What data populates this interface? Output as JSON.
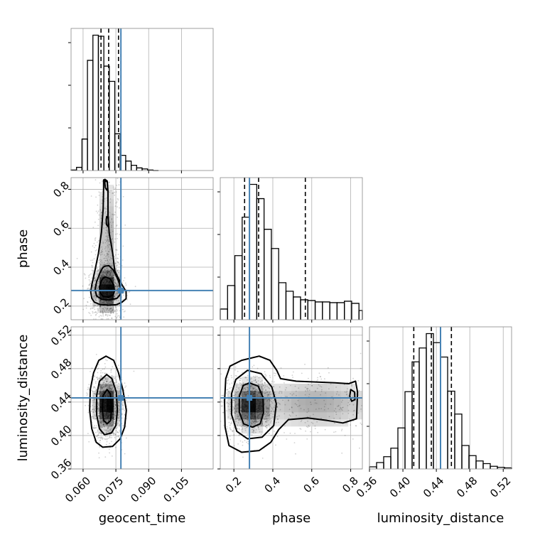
{
  "chart_data": {
    "type": "corner",
    "parameters": [
      "geocent_time",
      "phase",
      "luminosity_distance"
    ],
    "truth_color": "#4682b4",
    "truths": {
      "geocent_time": 0.0773,
      "phase": 0.28,
      "luminosity_distance": 0.445
    },
    "ranges": {
      "geocent_time": [
        0.0545,
        0.1195
      ],
      "phase": [
        0.13,
        0.86
      ],
      "luminosity_distance": [
        0.36,
        0.53
      ]
    },
    "ticks": {
      "geocent_time": {
        "values": [
          0.06,
          0.075,
          0.09,
          0.105
        ],
        "labels": [
          "0.060",
          "0.075",
          "0.090",
          "0.105"
        ]
      },
      "phase": {
        "values": [
          0.2,
          0.4,
          0.6,
          0.8
        ],
        "labels": [
          "0.2",
          "0.4",
          "0.6",
          "0.8"
        ]
      },
      "luminosity_distance": {
        "values": [
          0.36,
          0.4,
          0.44,
          0.48,
          0.52
        ],
        "labels": [
          "0.36",
          "0.40",
          "0.44",
          "0.48",
          "0.52"
        ]
      }
    },
    "quantiles": {
      "geocent_time": [
        0.0682,
        0.0717,
        0.0762
      ],
      "phase": [
        0.255,
        0.327,
        0.567
      ],
      "luminosity_distance": [
        0.413,
        0.434,
        0.458
      ]
    },
    "histograms": {
      "geocent_time": {
        "edges": [
          0.0545,
          0.057,
          0.0595,
          0.062,
          0.0645,
          0.067,
          0.0695,
          0.072,
          0.0745,
          0.077,
          0.0795,
          0.082,
          0.0845,
          0.087,
          0.0895,
          0.092,
          0.0945
        ],
        "counts": [
          1,
          6,
          60,
          210,
          258,
          256,
          199,
          170,
          70,
          29,
          18,
          10,
          5,
          3,
          1,
          0
        ]
      },
      "phase": {
        "edges": [
          0.13,
          0.1675,
          0.205,
          0.2425,
          0.28,
          0.3175,
          0.355,
          0.3925,
          0.43,
          0.4675,
          0.505,
          0.5425,
          0.58,
          0.6175,
          0.655,
          0.6925,
          0.73,
          0.7675,
          0.805,
          0.8425,
          0.86
        ],
        "counts": [
          15,
          48,
          90,
          144,
          190,
          170,
          127,
          100,
          52,
          40,
          32,
          28,
          27,
          25,
          25,
          24,
          24,
          26,
          23,
          13
        ]
      },
      "luminosity_distance": {
        "edges": [
          0.36,
          0.3685,
          0.377,
          0.3855,
          0.394,
          0.4025,
          0.411,
          0.4195,
          0.428,
          0.4365,
          0.445,
          0.4535,
          0.462,
          0.4705,
          0.479,
          0.4875,
          0.496,
          0.5045,
          0.513,
          0.5215,
          0.53
        ],
        "counts": [
          4,
          12,
          23,
          39,
          77,
          145,
          201,
          227,
          254,
          237,
          210,
          146,
          103,
          44,
          25,
          15,
          10,
          5,
          3,
          2
        ]
      }
    },
    "pairs": [
      {
        "x": "geocent_time",
        "y": "phase",
        "blobs": [
          {
            "mx": 0.0708,
            "my": 0.285,
            "sx": 0.0028,
            "sy": 0.058,
            "w": 1.0
          },
          {
            "mx": 0.0712,
            "my": 0.55,
            "sx": 0.0024,
            "sy": 0.17,
            "w": 0.28
          }
        ],
        "contours": [
          [
            [
              0.0694,
              0.848
            ],
            [
              0.07,
              0.851
            ],
            [
              0.071,
              0.843
            ],
            [
              0.0714,
              0.79
            ],
            [
              0.0714,
              0.728
            ],
            [
              0.0714,
              0.665
            ],
            [
              0.072,
              0.572
            ],
            [
              0.073,
              0.51
            ],
            [
              0.0738,
              0.45
            ],
            [
              0.0745,
              0.382
            ],
            [
              0.076,
              0.345
            ],
            [
              0.0783,
              0.3
            ],
            [
              0.0797,
              0.275
            ],
            [
              0.0797,
              0.238
            ],
            [
              0.0778,
              0.22
            ],
            [
              0.0752,
              0.207
            ],
            [
              0.0718,
              0.205
            ],
            [
              0.0678,
              0.208
            ],
            [
              0.0652,
              0.22
            ],
            [
              0.064,
              0.24
            ],
            [
              0.0635,
              0.272
            ],
            [
              0.064,
              0.31
            ],
            [
              0.0652,
              0.37
            ],
            [
              0.067,
              0.47
            ],
            [
              0.0684,
              0.58
            ],
            [
              0.0692,
              0.7
            ],
            [
              0.0694,
              0.8
            ]
          ],
          [
            [
              0.07,
              0.405
            ],
            [
              0.0718,
              0.408
            ],
            [
              0.0738,
              0.385
            ],
            [
              0.0752,
              0.355
            ],
            [
              0.0765,
              0.32
            ],
            [
              0.0772,
              0.29
            ],
            [
              0.077,
              0.26
            ],
            [
              0.0755,
              0.24
            ],
            [
              0.072,
              0.232
            ],
            [
              0.0685,
              0.235
            ],
            [
              0.0662,
              0.252
            ],
            [
              0.0655,
              0.285
            ],
            [
              0.0662,
              0.325
            ],
            [
              0.0677,
              0.37
            ],
            [
              0.069,
              0.398
            ]
          ],
          [
            [
              0.0702,
              0.35
            ],
            [
              0.0724,
              0.34
            ],
            [
              0.074,
              0.31
            ],
            [
              0.0744,
              0.278
            ],
            [
              0.0737,
              0.256
            ],
            [
              0.0716,
              0.247
            ],
            [
              0.0692,
              0.25
            ],
            [
              0.0677,
              0.27
            ],
            [
              0.0675,
              0.3
            ],
            [
              0.0684,
              0.33
            ],
            [
              0.0694,
              0.346
            ]
          ],
          [
            [
              0.0708,
              0.66
            ],
            [
              0.0715,
              0.655
            ],
            [
              0.0716,
              0.62
            ],
            [
              0.0713,
              0.61
            ],
            [
              0.0707,
              0.62
            ],
            [
              0.0706,
              0.645
            ]
          ],
          [
            [
              0.07,
              0.845
            ],
            [
              0.0711,
              0.838
            ],
            [
              0.0712,
              0.805
            ],
            [
              0.0708,
              0.796
            ],
            [
              0.0702,
              0.808
            ],
            [
              0.07,
              0.83
            ]
          ]
        ]
      },
      {
        "x": "geocent_time",
        "y": "luminosity_distance",
        "blobs": [
          {
            "mx": 0.071,
            "my": 0.436,
            "sx": 0.0027,
            "sy": 0.015,
            "w": 1.0
          }
        ],
        "contours": [
          [
            [
              0.0705,
              0.495
            ],
            [
              0.074,
              0.49
            ],
            [
              0.0762,
              0.475
            ],
            [
              0.0782,
              0.455
            ],
            [
              0.0798,
              0.43
            ],
            [
              0.079,
              0.41
            ],
            [
              0.077,
              0.396
            ],
            [
              0.0735,
              0.387
            ],
            [
              0.069,
              0.386
            ],
            [
              0.066,
              0.392
            ],
            [
              0.064,
              0.408
            ],
            [
              0.063,
              0.43
            ],
            [
              0.0633,
              0.455
            ],
            [
              0.0648,
              0.475
            ],
            [
              0.0672,
              0.49
            ]
          ],
          [
            [
              0.0708,
              0.473
            ],
            [
              0.0732,
              0.468
            ],
            [
              0.0752,
              0.452
            ],
            [
              0.0757,
              0.43
            ],
            [
              0.075,
              0.412
            ],
            [
              0.073,
              0.403
            ],
            [
              0.0698,
              0.401
            ],
            [
              0.0675,
              0.408
            ],
            [
              0.0662,
              0.425
            ],
            [
              0.0662,
              0.448
            ],
            [
              0.0675,
              0.465
            ]
          ],
          [
            [
              0.071,
              0.455
            ],
            [
              0.0725,
              0.45
            ],
            [
              0.073,
              0.432
            ],
            [
              0.0726,
              0.418
            ],
            [
              0.071,
              0.414
            ],
            [
              0.0694,
              0.418
            ],
            [
              0.0688,
              0.432
            ],
            [
              0.0692,
              0.448
            ]
          ]
        ]
      },
      {
        "x": "phase",
        "y": "luminosity_distance",
        "blobs": [
          {
            "mx": 0.29,
            "my": 0.436,
            "sx": 0.05,
            "sy": 0.014,
            "w": 1.0
          },
          {
            "mx": 0.62,
            "my": 0.438,
            "sx": 0.18,
            "sy": 0.017,
            "w": 0.32
          }
        ],
        "contours": [
          [
            [
              0.24,
              0.49
            ],
            [
              0.33,
              0.495
            ],
            [
              0.385,
              0.49
            ],
            [
              0.42,
              0.478
            ],
            [
              0.44,
              0.468
            ],
            [
              0.52,
              0.465
            ],
            [
              0.62,
              0.464
            ],
            [
              0.72,
              0.463
            ],
            [
              0.79,
              0.462
            ],
            [
              0.825,
              0.465
            ],
            [
              0.835,
              0.452
            ],
            [
              0.83,
              0.42
            ],
            [
              0.76,
              0.415
            ],
            [
              0.68,
              0.418
            ],
            [
              0.58,
              0.421
            ],
            [
              0.48,
              0.419
            ],
            [
              0.43,
              0.407
            ],
            [
              0.39,
              0.392
            ],
            [
              0.33,
              0.382
            ],
            [
              0.24,
              0.38
            ],
            [
              0.175,
              0.388
            ],
            [
              0.155,
              0.41
            ],
            [
              0.152,
              0.44
            ],
            [
              0.158,
              0.468
            ],
            [
              0.18,
              0.483
            ]
          ],
          [
            [
              0.27,
              0.478
            ],
            [
              0.34,
              0.474
            ],
            [
              0.395,
              0.458
            ],
            [
              0.418,
              0.438
            ],
            [
              0.405,
              0.412
            ],
            [
              0.345,
              0.398
            ],
            [
              0.27,
              0.396
            ],
            [
              0.215,
              0.405
            ],
            [
              0.188,
              0.425
            ],
            [
              0.188,
              0.45
            ],
            [
              0.21,
              0.467
            ]
          ],
          [
            [
              0.28,
              0.463
            ],
            [
              0.325,
              0.459
            ],
            [
              0.35,
              0.445
            ],
            [
              0.352,
              0.427
            ],
            [
              0.335,
              0.414
            ],
            [
              0.295,
              0.41
            ],
            [
              0.25,
              0.414
            ],
            [
              0.228,
              0.428
            ],
            [
              0.228,
              0.447
            ],
            [
              0.248,
              0.46
            ]
          ],
          [
            [
              0.8,
              0.455
            ],
            [
              0.82,
              0.452
            ],
            [
              0.822,
              0.443
            ],
            [
              0.805,
              0.441
            ],
            [
              0.795,
              0.447
            ]
          ]
        ]
      }
    ],
    "grid": true
  }
}
